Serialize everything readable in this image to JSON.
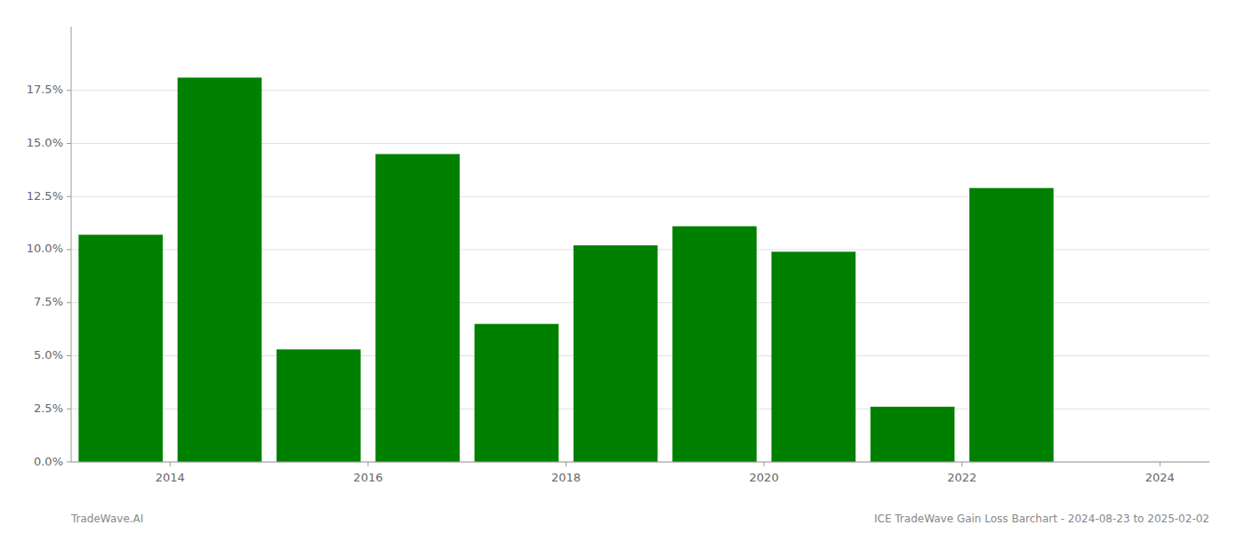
{
  "chart_data": {
    "type": "bar",
    "x": [
      2013.5,
      2014.5,
      2015.5,
      2016.5,
      2017.5,
      2018.5,
      2019.5,
      2020.5,
      2021.5,
      2022.5
    ],
    "values": [
      0.107,
      0.181,
      0.053,
      0.145,
      0.065,
      0.102,
      0.111,
      0.099,
      0.026,
      0.129
    ],
    "color": "#008000",
    "xlim": [
      2013.0,
      2024.5
    ],
    "xticks": [
      2014,
      2016,
      2018,
      2020,
      2022,
      2024
    ],
    "ylim": [
      0,
      0.205
    ],
    "yticks": [
      {
        "value": 0.0,
        "label": "0.0%"
      },
      {
        "value": 0.025,
        "label": "2.5%"
      },
      {
        "value": 0.05,
        "label": "5.0%"
      },
      {
        "value": 0.075,
        "label": "7.5%"
      },
      {
        "value": 0.1,
        "label": "10.0%"
      },
      {
        "value": 0.125,
        "label": "12.5%"
      },
      {
        "value": 0.15,
        "label": "15.0%"
      },
      {
        "value": 0.175,
        "label": "17.5%"
      }
    ],
    "grid": true,
    "annotations": [
      "TradeWave.AI",
      "ICE TradeWave Gain Loss Barchart - 2024-08-23 to 2025-02-02"
    ]
  }
}
